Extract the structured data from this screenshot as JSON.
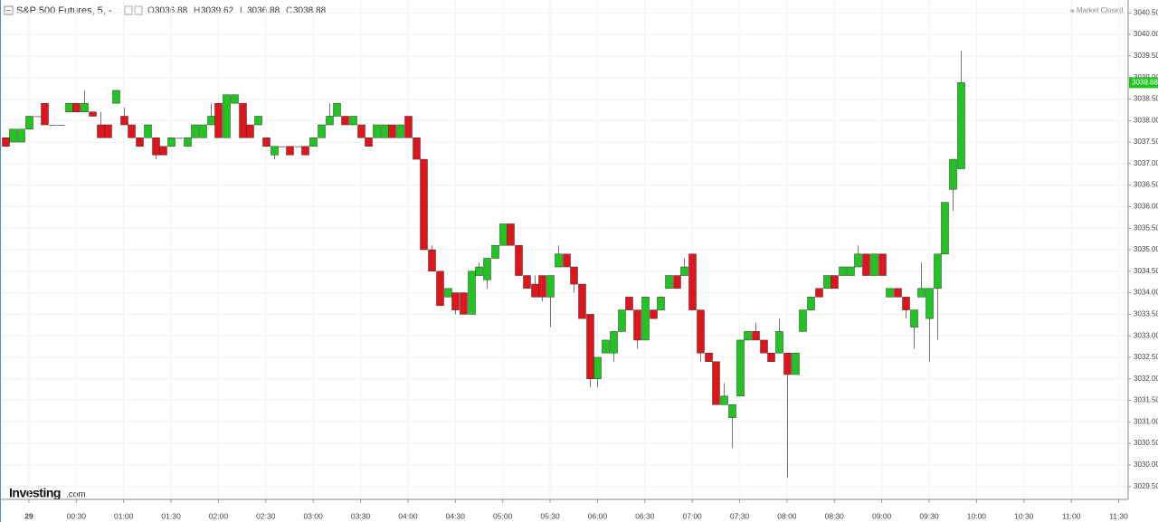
{
  "chart_data": {
    "type": "candlestick",
    "title": "S&P 500 Futures, 5, -",
    "ohlc_prefixes": [
      "O",
      "H",
      "L",
      "C"
    ],
    "status": "Market Closed",
    "brand": "Investing",
    "brand_suffix": ".com",
    "up_color": "#20c520",
    "down_color": "#e0151b",
    "grid": true,
    "xlim": [
      -18.3,
      696
    ],
    "ylim": [
      3029.2,
      3040.8
    ],
    "xticks": [
      {
        "value": 0,
        "label": "29"
      },
      {
        "value": 30,
        "label": "00:30"
      },
      {
        "value": 60,
        "label": "01:00"
      },
      {
        "value": 90,
        "label": "01:30"
      },
      {
        "value": 120,
        "label": "02:00"
      },
      {
        "value": 150,
        "label": "02:30"
      },
      {
        "value": 180,
        "label": "03:00"
      },
      {
        "value": 210,
        "label": "03:30"
      },
      {
        "value": 240,
        "label": "04:00"
      },
      {
        "value": 270,
        "label": "04:30"
      },
      {
        "value": 300,
        "label": "05:00"
      },
      {
        "value": 330,
        "label": "05:30"
      },
      {
        "value": 360,
        "label": "06:00"
      },
      {
        "value": 390,
        "label": "06:30"
      },
      {
        "value": 420,
        "label": "07:00"
      },
      {
        "value": 450,
        "label": "07:30"
      },
      {
        "value": 480,
        "label": "08:00"
      },
      {
        "value": 510,
        "label": "08:30"
      },
      {
        "value": 540,
        "label": "09:00"
      },
      {
        "value": 570,
        "label": "09:30"
      },
      {
        "value": 600,
        "label": "10:00"
      },
      {
        "value": 630,
        "label": "10:30"
      },
      {
        "value": 660,
        "label": "11:00"
      },
      {
        "value": 690,
        "label": "11:30"
      }
    ],
    "yticks": [
      {
        "value": 3029.5,
        "label": "3029.50"
      },
      {
        "value": 3030,
        "label": "3030.00"
      },
      {
        "value": 3030.5,
        "label": "3030.50"
      },
      {
        "value": 3031,
        "label": "3031.00"
      },
      {
        "value": 3031.5,
        "label": "3031.50"
      },
      {
        "value": 3032,
        "label": "3032.00"
      },
      {
        "value": 3032.5,
        "label": "3032.50"
      },
      {
        "value": 3033,
        "label": "3033.00"
      },
      {
        "value": 3033.5,
        "label": "3033.50"
      },
      {
        "value": 3034,
        "label": "3034.00"
      },
      {
        "value": 3034.5,
        "label": "3034.50"
      },
      {
        "value": 3035,
        "label": "3035.00"
      },
      {
        "value": 3035.5,
        "label": "3035.50"
      },
      {
        "value": 3036,
        "label": "3036.00"
      },
      {
        "value": 3036.5,
        "label": "3036.50"
      },
      {
        "value": 3037,
        "label": "3037.00"
      },
      {
        "value": 3037.5,
        "label": "3037.50"
      },
      {
        "value": 3038,
        "label": "3038.00"
      },
      {
        "value": 3038.5,
        "label": "3038.50"
      },
      {
        "value": 3039,
        "label": "3039.00"
      },
      {
        "value": 3039.5,
        "label": "3039.50"
      },
      {
        "value": 3040,
        "label": "3040.00"
      },
      {
        "value": 3040.5,
        "label": "3040.50"
      }
    ],
    "x": [
      -15,
      -10,
      -5,
      0,
      5,
      10,
      15,
      20,
      25,
      30,
      35,
      40,
      45,
      50,
      55,
      60,
      65,
      70,
      75,
      80,
      85,
      90,
      95,
      100,
      105,
      110,
      115,
      120,
      125,
      130,
      135,
      140,
      145,
      150,
      155,
      160,
      165,
      170,
      175,
      180,
      185,
      190,
      195,
      200,
      205,
      210,
      215,
      220,
      225,
      230,
      235,
      240,
      245,
      250,
      255,
      260,
      265,
      270,
      275,
      280,
      285,
      290,
      295,
      300,
      305,
      310,
      315,
      320,
      325,
      330,
      335,
      340,
      345,
      350,
      355,
      360,
      365,
      370,
      375,
      380,
      385,
      390,
      395,
      400,
      405,
      410,
      415,
      420,
      425,
      430,
      435,
      440,
      445,
      450,
      455,
      460,
      465,
      470,
      475,
      480,
      485,
      490,
      495,
      500,
      505,
      510,
      515,
      520,
      525,
      530,
      535,
      540,
      545,
      550,
      555,
      560,
      565,
      570,
      575,
      580,
      585,
      590
    ],
    "open": [
      3037.6,
      3037.5,
      3037.5,
      3037.8,
      3038.1,
      3038.4,
      3037.9,
      3037.9,
      3038.2,
      3038.4,
      3038.2,
      3038.2,
      3037.9,
      3037.9,
      3038.4,
      3038.1,
      3037.9,
      3037.6,
      3037.6,
      3037.6,
      3037.4,
      3037.4,
      3037.6,
      3037.4,
      3037.6,
      3037.6,
      3037.9,
      3038.4,
      3037.6,
      3038.4,
      3038.4,
      3037.9,
      3037.9,
      3037.6,
      3037.2,
      3037.4,
      3037.4,
      3037.4,
      3037.4,
      3037.4,
      3037.6,
      3037.9,
      3038.1,
      3038.1,
      3037.9,
      3037.9,
      3037.6,
      3037.6,
      3037.6,
      3037.9,
      3037.6,
      3038.1,
      3037.6,
      3037.1,
      3035.0,
      3034.5,
      3033.9,
      3034.0,
      3034.0,
      3033.5,
      3034.4,
      3034.3,
      3034.8,
      3035.1,
      3035.6,
      3035.1,
      3034.4,
      3034.2,
      3034.4,
      3033.9,
      3034.6,
      3034.9,
      3034.6,
      3034.2,
      3033.5,
      3032.0,
      3032.6,
      3032.6,
      3033.1,
      3033.9,
      3033.6,
      3032.9,
      3033.6,
      3033.6,
      3034.1,
      3034.4,
      3034.4,
      3034.9,
      3033.6,
      3032.6,
      3032.4,
      3031.4,
      3031.1,
      3031.6,
      3032.9,
      3033.1,
      3032.9,
      3032.6,
      3032.6,
      3032.6,
      3032.1,
      3033.1,
      3033.6,
      3034.1,
      3034.1,
      3034.4,
      3034.4,
      3034.4,
      3034.6,
      3034.9,
      3034.4,
      3034.9,
      3033.9,
      3034.1,
      3033.9,
      3033.2,
      3033.9,
      3033.4,
      3034.1,
      3034.9,
      3036.4,
      3036.88
    ],
    "high": [
      3037.6,
      3037.8,
      3037.8,
      3038.1,
      3038.1,
      3038.4,
      3037.9,
      3037.9,
      3038.4,
      3038.4,
      3038.7,
      3038.2,
      3038.2,
      3037.9,
      3038.7,
      3038.3,
      3037.9,
      3037.6,
      3037.9,
      3037.6,
      3037.4,
      3037.6,
      3037.6,
      3037.6,
      3037.9,
      3037.9,
      3038.4,
      3038.4,
      3038.6,
      3038.6,
      3038.4,
      3037.9,
      3038.1,
      3037.6,
      3037.4,
      3037.4,
      3037.4,
      3037.4,
      3037.4,
      3037.6,
      3037.9,
      3038.4,
      3038.4,
      3038.1,
      3038.1,
      3037.9,
      3037.6,
      3037.9,
      3037.9,
      3037.9,
      3037.9,
      3038.1,
      3037.6,
      3037.1,
      3035.1,
      3034.5,
      3034.1,
      3034.0,
      3034.0,
      3034.5,
      3034.7,
      3034.8,
      3035.1,
      3035.6,
      3035.6,
      3035.1,
      3034.4,
      3034.4,
      3034.4,
      3034.4,
      3035.1,
      3034.9,
      3034.6,
      3034.2,
      3033.5,
      3032.5,
      3032.9,
      3033.1,
      3033.6,
      3033.9,
      3033.6,
      3033.9,
      3033.6,
      3033.9,
      3034.4,
      3034.4,
      3034.8,
      3034.9,
      3033.6,
      3032.6,
      3032.4,
      3031.9,
      3031.4,
      3032.9,
      3033.1,
      3033.3,
      3032.9,
      3032.6,
      3033.4,
      3032.6,
      3032.6,
      3033.6,
      3033.9,
      3034.1,
      3034.4,
      3034.4,
      3034.6,
      3034.6,
      3035.1,
      3034.9,
      3034.9,
      3034.9,
      3034.1,
      3034.1,
      3033.9,
      3033.6,
      3034.7,
      3034.1,
      3034.9,
      3036.1,
      3037.1,
      3039.62
    ],
    "low": [
      3037.4,
      3037.5,
      3037.5,
      3037.8,
      3038.1,
      3037.9,
      3037.9,
      3037.9,
      3038.2,
      3038.2,
      3038.2,
      3038.1,
      3037.6,
      3037.6,
      3038.4,
      3037.9,
      3037.6,
      3037.4,
      3037.6,
      3037.1,
      3037.2,
      3037.4,
      3037.6,
      3037.4,
      3037.6,
      3037.6,
      3037.9,
      3037.6,
      3037.6,
      3038.4,
      3037.6,
      3037.6,
      3037.9,
      3037.4,
      3037.1,
      3037.4,
      3037.2,
      3037.4,
      3037.2,
      3037.4,
      3037.6,
      3037.9,
      3038.1,
      3037.9,
      3037.9,
      3037.6,
      3037.4,
      3037.6,
      3037.6,
      3037.6,
      3037.6,
      3037.6,
      3037.1,
      3035.0,
      3034.5,
      3033.7,
      3033.9,
      3033.5,
      3033.5,
      3033.5,
      3034.4,
      3034.1,
      3034.8,
      3035.1,
      3035.1,
      3034.4,
      3034.1,
      3033.9,
      3033.8,
      3033.2,
      3034.6,
      3034.6,
      3034.0,
      3033.4,
      3031.8,
      3031.8,
      3032.6,
      3032.4,
      3033.1,
      3033.6,
      3032.7,
      3032.9,
      3033.4,
      3033.6,
      3034.1,
      3034.1,
      3034.4,
      3033.6,
      3032.4,
      3032.4,
      3031.4,
      3031.4,
      3030.4,
      3031.6,
      3032.9,
      3032.9,
      3032.6,
      3032.4,
      3032.6,
      3029.7,
      3032.1,
      3033.1,
      3033.6,
      3033.9,
      3034.1,
      3034.1,
      3034.4,
      3034.4,
      3034.6,
      3034.4,
      3034.4,
      3034.4,
      3033.9,
      3033.9,
      3033.4,
      3032.7,
      3033.9,
      3032.4,
      3032.9,
      3034.9,
      3035.9,
      3036.88
    ],
    "close": [
      3037.4,
      3037.8,
      3037.8,
      3038.1,
      3038.1,
      3037.9,
      3037.9,
      3037.9,
      3038.4,
      3038.2,
      3038.4,
      3038.1,
      3037.6,
      3037.6,
      3038.7,
      3037.9,
      3037.6,
      3037.4,
      3037.9,
      3037.2,
      3037.2,
      3037.6,
      3037.6,
      3037.6,
      3037.9,
      3037.9,
      3038.1,
      3037.6,
      3038.6,
      3038.6,
      3037.6,
      3037.6,
      3038.1,
      3037.4,
      3037.4,
      3037.4,
      3037.2,
      3037.4,
      3037.2,
      3037.6,
      3037.9,
      3038.1,
      3038.4,
      3037.9,
      3038.1,
      3037.6,
      3037.4,
      3037.9,
      3037.9,
      3037.6,
      3037.9,
      3037.6,
      3037.1,
      3035.0,
      3034.5,
      3033.7,
      3034.1,
      3033.6,
      3033.5,
      3034.5,
      3034.6,
      3034.8,
      3035.1,
      3035.6,
      3035.1,
      3034.4,
      3034.1,
      3033.9,
      3033.9,
      3034.4,
      3034.9,
      3034.6,
      3034.2,
      3033.4,
      3032.0,
      3032.5,
      3032.9,
      3033.1,
      3033.6,
      3033.6,
      3032.9,
      3033.9,
      3033.4,
      3033.9,
      3034.4,
      3034.1,
      3034.6,
      3033.6,
      3032.6,
      3032.4,
      3031.4,
      3031.6,
      3031.4,
      3032.9,
      3033.1,
      3032.9,
      3032.6,
      3032.4,
      3033.1,
      3032.1,
      3032.6,
      3033.6,
      3033.9,
      3033.9,
      3034.4,
      3034.1,
      3034.6,
      3034.6,
      3034.9,
      3034.4,
      3034.9,
      3034.4,
      3034.1,
      3033.9,
      3033.6,
      3033.6,
      3034.1,
      3034.1,
      3034.9,
      3036.1,
      3037.1,
      3038.88
    ]
  }
}
